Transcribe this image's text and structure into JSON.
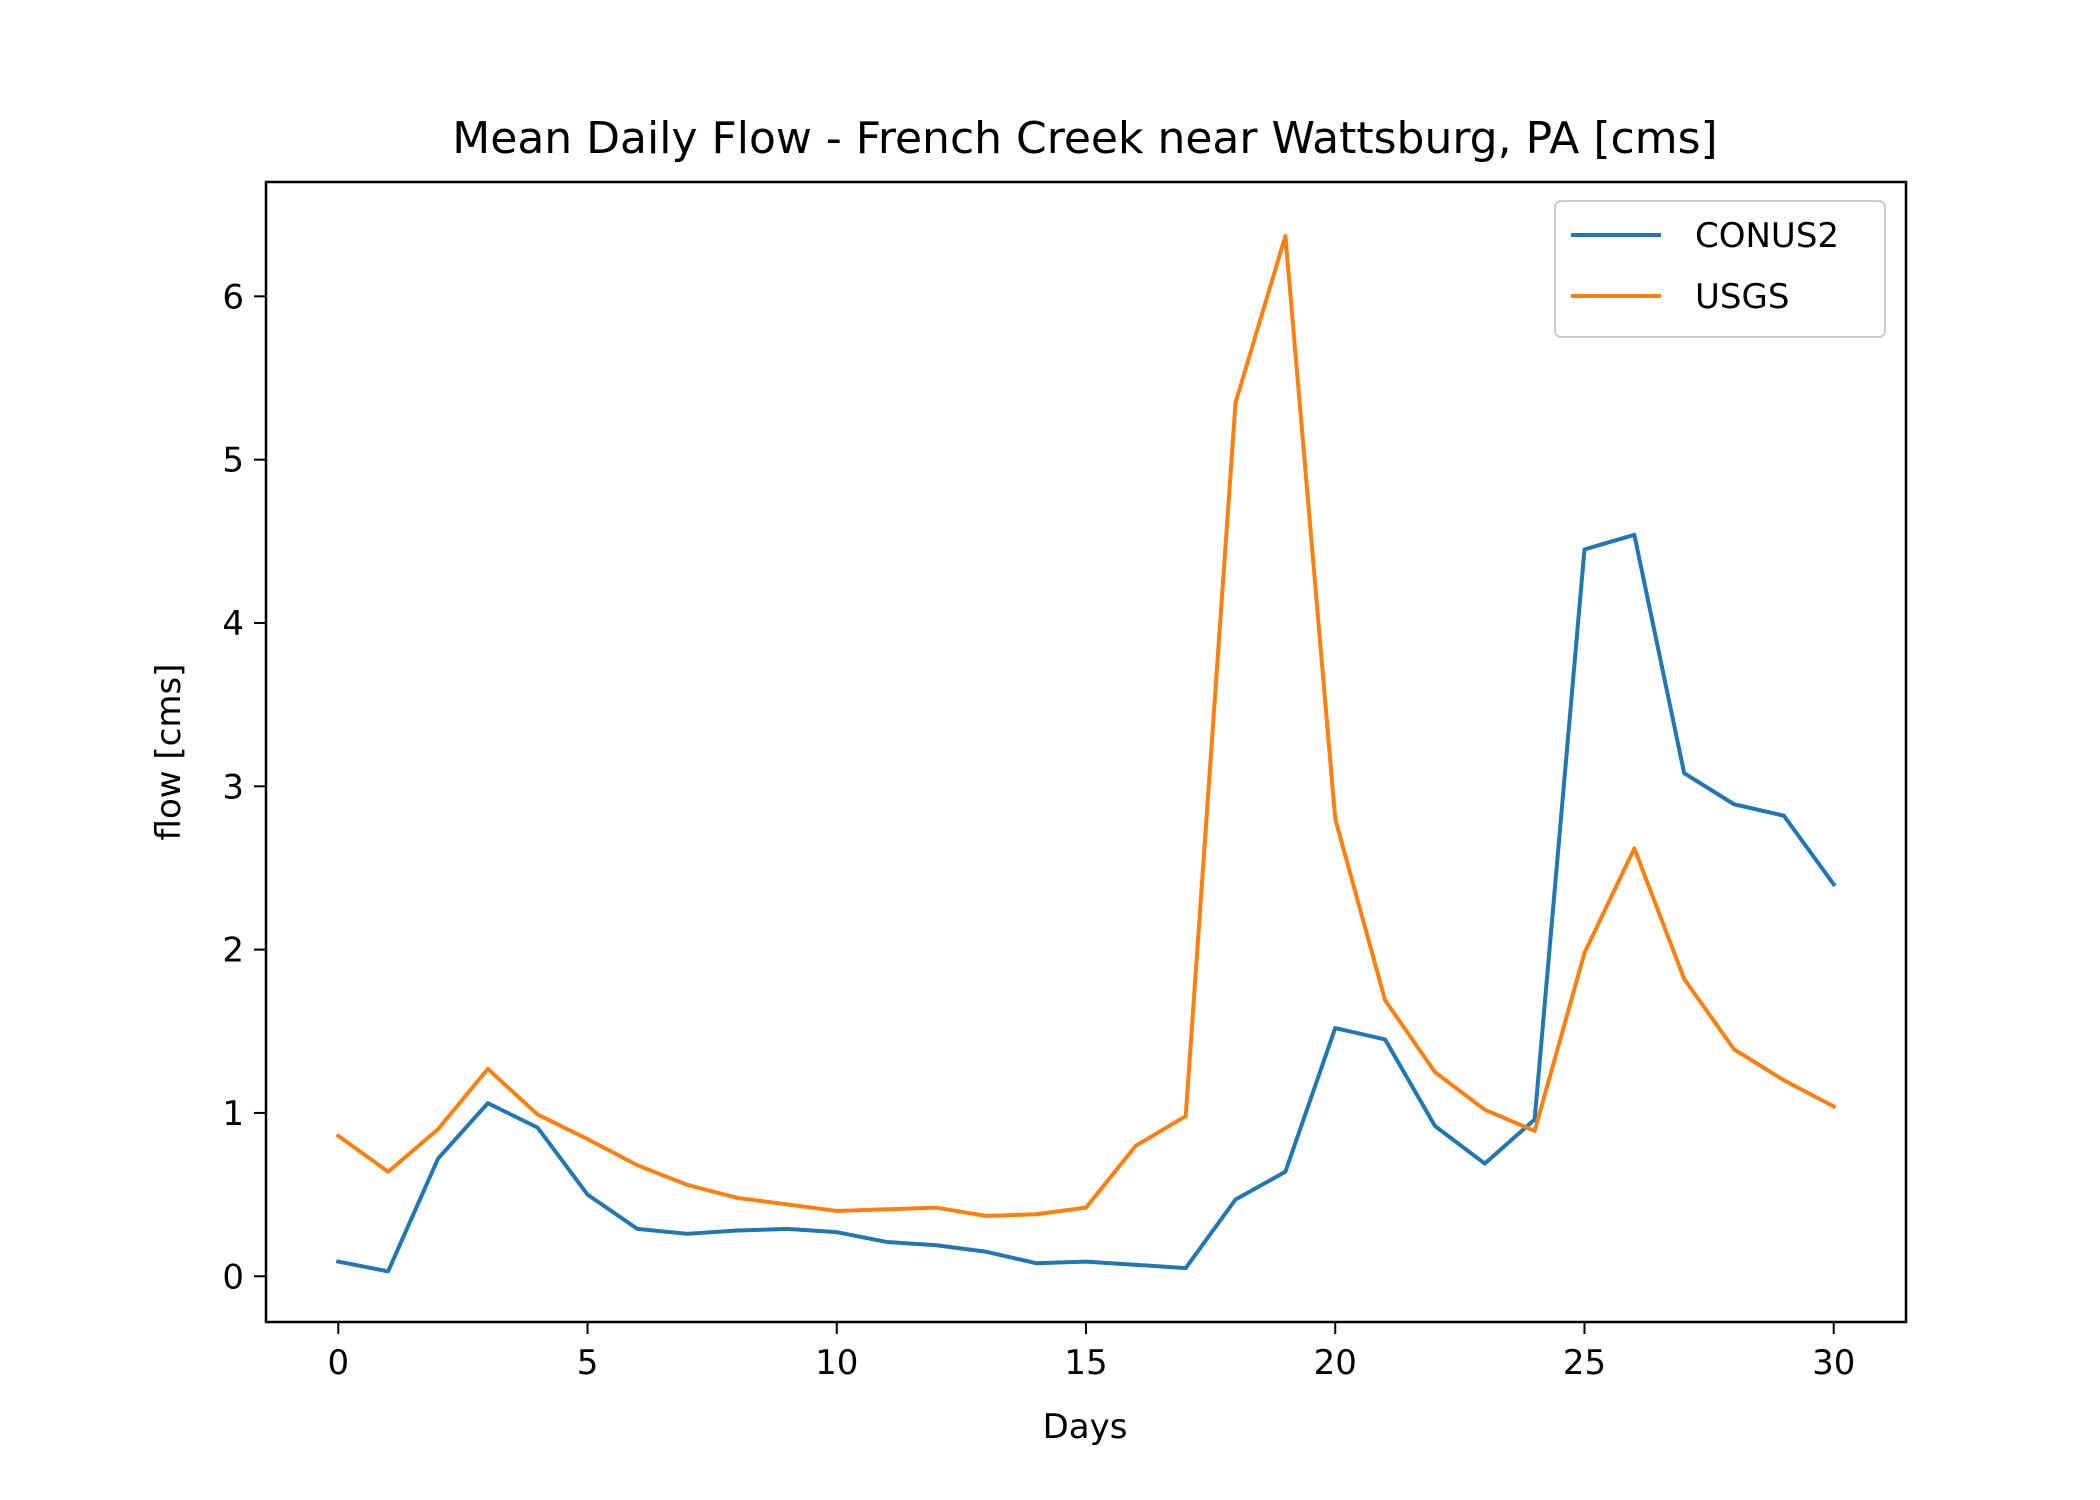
{
  "chart_data": {
    "type": "line",
    "title": "Mean Daily Flow - French Creek near Wattsburg, PA [cms]",
    "xlabel": "Days",
    "ylabel": "flow [cms]",
    "xlim": [
      -1.45,
      31.45
    ],
    "ylim": [
      -0.28,
      6.7
    ],
    "xticks": [
      0,
      5,
      10,
      15,
      20,
      25,
      30
    ],
    "xtick_labels": [
      "0",
      "5",
      "10",
      "15",
      "20",
      "25",
      "30"
    ],
    "yticks": [
      0,
      1,
      2,
      3,
      4,
      5,
      6
    ],
    "ytick_labels": [
      "0",
      "1",
      "2",
      "3",
      "4",
      "5",
      "6"
    ],
    "grid": false,
    "legend_position": "top-right",
    "x": [
      0,
      1,
      2,
      3,
      4,
      5,
      6,
      7,
      8,
      9,
      10,
      11,
      12,
      13,
      14,
      15,
      16,
      17,
      18,
      19,
      20,
      21,
      22,
      23,
      24,
      25,
      26,
      27,
      28,
      29,
      30
    ],
    "series": [
      {
        "name": "CONUS2",
        "color": "#1f77b4",
        "values": [
          0.09,
          0.03,
          0.72,
          1.06,
          0.91,
          0.5,
          0.29,
          0.26,
          0.28,
          0.29,
          0.27,
          0.21,
          0.19,
          0.15,
          0.08,
          0.09,
          0.07,
          0.05,
          0.47,
          0.64,
          1.52,
          1.45,
          0.92,
          0.69,
          0.96,
          4.45,
          4.54,
          3.08,
          2.89,
          2.82,
          2.4
        ]
      },
      {
        "name": "USGS",
        "color": "#ff7f0e",
        "values": [
          0.86,
          0.64,
          0.9,
          1.27,
          0.99,
          0.84,
          0.68,
          0.56,
          0.48,
          0.44,
          0.4,
          0.41,
          0.42,
          0.37,
          0.38,
          0.42,
          0.8,
          0.98,
          5.35,
          6.37,
          2.8,
          1.69,
          1.25,
          1.02,
          0.89,
          1.98,
          2.62,
          1.82,
          1.39,
          1.2,
          1.04
        ]
      }
    ]
  }
}
